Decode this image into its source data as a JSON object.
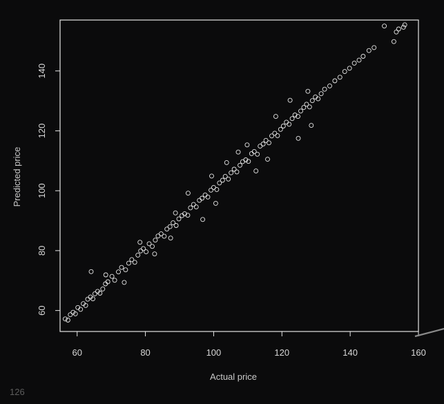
{
  "chart_data": {
    "type": "scatter",
    "title": "",
    "xlabel": "Actual price",
    "ylabel": "Predicted price",
    "xlim": [
      55,
      160
    ],
    "ylim": [
      53,
      157
    ],
    "xticks": [
      60,
      80,
      100,
      120,
      140,
      160
    ],
    "yticks": [
      60,
      80,
      100,
      120,
      140
    ],
    "marker": "open-circle",
    "grid": false,
    "colors": {
      "background": "#0b0b0c",
      "frame": "#e6e6e6",
      "points": "#e8e8e8"
    },
    "points": [
      [
        56.5,
        57.2
      ],
      [
        57.3,
        56.8
      ],
      [
        58.0,
        58.6
      ],
      [
        58.8,
        59.4
      ],
      [
        59.5,
        58.9
      ],
      [
        60.2,
        61.0
      ],
      [
        61.0,
        60.4
      ],
      [
        61.8,
        62.3
      ],
      [
        62.5,
        61.7
      ],
      [
        63.1,
        63.8
      ],
      [
        63.9,
        64.5
      ],
      [
        64.6,
        63.9
      ],
      [
        65.2,
        65.6
      ],
      [
        66.0,
        66.4
      ],
      [
        66.7,
        65.8
      ],
      [
        64.1,
        73.0
      ],
      [
        67.5,
        67.2
      ],
      [
        68.3,
        68.9
      ],
      [
        69.0,
        69.6
      ],
      [
        70.2,
        71.4
      ],
      [
        71.0,
        70.1
      ],
      [
        72.1,
        72.9
      ],
      [
        73.0,
        74.4
      ],
      [
        74.2,
        73.6
      ],
      [
        75.1,
        75.8
      ],
      [
        76.0,
        77.0
      ],
      [
        76.9,
        76.1
      ],
      [
        77.8,
        78.5
      ],
      [
        78.6,
        79.9
      ],
      [
        79.4,
        80.7
      ],
      [
        80.2,
        79.6
      ],
      [
        81.1,
        82.3
      ],
      [
        82.0,
        81.4
      ],
      [
        82.9,
        83.5
      ],
      [
        83.7,
        84.9
      ],
      [
        84.6,
        85.6
      ],
      [
        85.5,
        84.8
      ],
      [
        86.3,
        87.2
      ],
      [
        87.2,
        88.0
      ],
      [
        88.1,
        89.3
      ],
      [
        89.0,
        88.4
      ],
      [
        89.8,
        90.6
      ],
      [
        90.7,
        91.7
      ],
      [
        91.5,
        92.3
      ],
      [
        92.4,
        91.8
      ],
      [
        93.2,
        94.3
      ],
      [
        94.1,
        95.4
      ],
      [
        94.9,
        94.6
      ],
      [
        95.8,
        96.8
      ],
      [
        96.6,
        97.5
      ],
      [
        97.5,
        98.6
      ],
      [
        98.3,
        97.9
      ],
      [
        99.2,
        100.2
      ],
      [
        100.0,
        101.1
      ],
      [
        100.9,
        100.4
      ],
      [
        101.7,
        102.6
      ],
      [
        102.6,
        103.5
      ],
      [
        103.4,
        104.8
      ],
      [
        104.3,
        103.9
      ],
      [
        105.1,
        106.0
      ],
      [
        106.0,
        107.2
      ],
      [
        106.8,
        106.3
      ],
      [
        107.7,
        108.5
      ],
      [
        108.5,
        109.7
      ],
      [
        109.4,
        110.3
      ],
      [
        110.2,
        109.8
      ],
      [
        111.1,
        112.4
      ],
      [
        111.9,
        113.1
      ],
      [
        112.8,
        112.2
      ],
      [
        113.6,
        114.9
      ],
      [
        114.5,
        115.6
      ],
      [
        115.3,
        116.8
      ],
      [
        116.2,
        116.0
      ],
      [
        117.0,
        118.3
      ],
      [
        117.9,
        119.2
      ],
      [
        118.7,
        118.4
      ],
      [
        119.6,
        120.5
      ],
      [
        120.4,
        121.6
      ],
      [
        121.3,
        122.9
      ],
      [
        122.1,
        122.2
      ],
      [
        123.0,
        124.1
      ],
      [
        123.8,
        125.3
      ],
      [
        124.7,
        124.8
      ],
      [
        125.5,
        126.6
      ],
      [
        126.4,
        127.8
      ],
      [
        127.2,
        128.9
      ],
      [
        128.1,
        128.0
      ],
      [
        128.9,
        130.1
      ],
      [
        129.8,
        131.3
      ],
      [
        130.6,
        130.7
      ],
      [
        131.5,
        132.4
      ],
      [
        132.5,
        133.9
      ],
      [
        134.0,
        135.0
      ],
      [
        135.5,
        136.7
      ],
      [
        137.0,
        137.9
      ],
      [
        138.4,
        139.8
      ],
      [
        139.8,
        140.9
      ],
      [
        141.2,
        142.6
      ],
      [
        142.6,
        143.6
      ],
      [
        143.8,
        144.9
      ],
      [
        145.5,
        146.8
      ],
      [
        147.0,
        147.8
      ],
      [
        150.0,
        155.0
      ],
      [
        152.8,
        149.8
      ],
      [
        153.5,
        153.0
      ],
      [
        154.2,
        154.0
      ],
      [
        155.6,
        154.6
      ],
      [
        156.0,
        155.4
      ],
      [
        92.5,
        99.2
      ],
      [
        96.8,
        90.4
      ],
      [
        107.2,
        112.9
      ],
      [
        112.4,
        106.6
      ],
      [
        118.2,
        124.8
      ],
      [
        124.8,
        117.5
      ],
      [
        82.7,
        78.9
      ],
      [
        78.4,
        82.8
      ],
      [
        100.6,
        95.8
      ],
      [
        103.8,
        109.4
      ],
      [
        128.6,
        121.8
      ],
      [
        122.4,
        130.2
      ],
      [
        88.8,
        92.6
      ],
      [
        87.4,
        84.2
      ],
      [
        68.4,
        71.9
      ],
      [
        73.8,
        69.4
      ],
      [
        115.8,
        110.5
      ],
      [
        109.8,
        115.3
      ],
      [
        127.6,
        133.2
      ],
      [
        99.4,
        104.9
      ]
    ]
  },
  "footer": {
    "page_number": "126"
  }
}
